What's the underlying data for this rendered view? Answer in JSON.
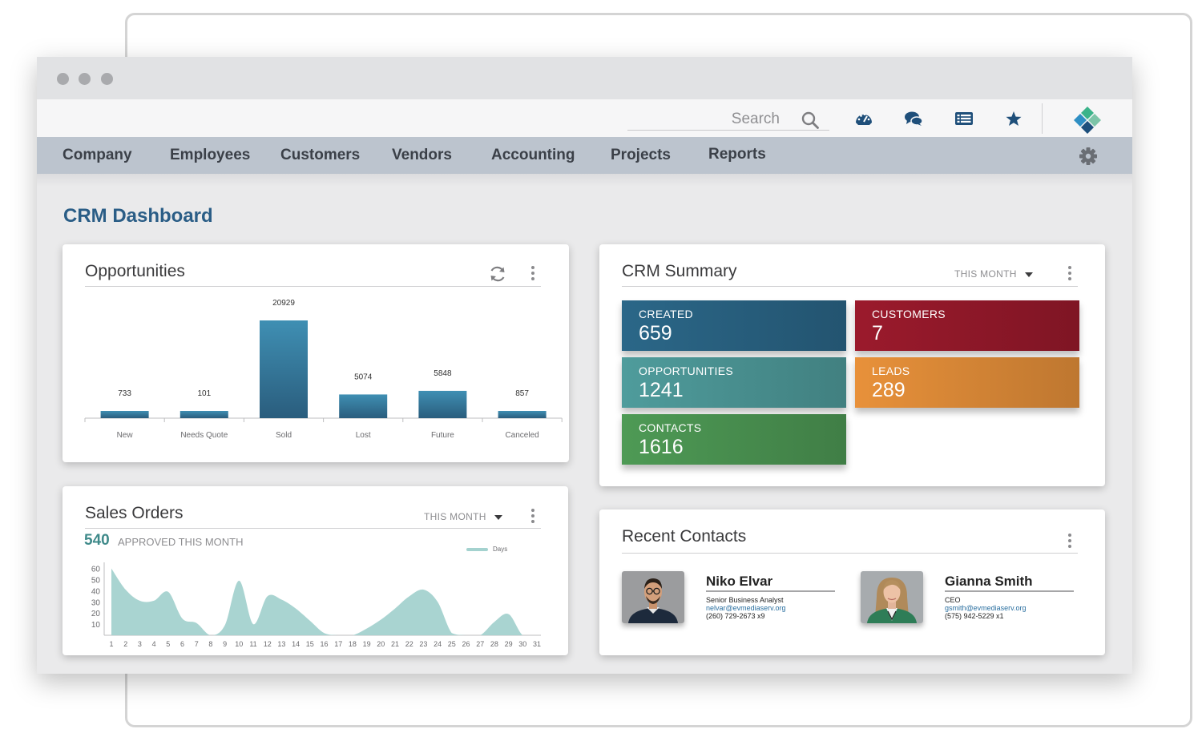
{
  "search": {
    "placeholder": "Search"
  },
  "toolbar_icons": [
    "dashboard-gauge-icon",
    "chat-bubbles-icon",
    "list-icon",
    "star-icon"
  ],
  "nav": {
    "items": [
      "Company",
      "Employees",
      "Customers",
      "Vendors",
      "Accounting",
      "Projects",
      "Reports"
    ]
  },
  "page": {
    "title": "CRM Dashboard"
  },
  "opportunities": {
    "title": "Opportunities"
  },
  "crm_summary": {
    "title": "CRM Summary",
    "period": "THIS MONTH",
    "tiles": [
      {
        "label": "CREATED",
        "value": "659",
        "color": "#2b6788"
      },
      {
        "label": "CUSTOMERS",
        "value": "7",
        "color": "#9b1a2c"
      },
      {
        "label": "OPPORTUNITIES",
        "value": "1241",
        "color": "#4f9c9c"
      },
      {
        "label": "LEADS",
        "value": "289",
        "color": "#e8913a"
      },
      {
        "label": "CONTACTS",
        "value": "1616",
        "color": "#4e9a55"
      }
    ]
  },
  "sales_orders": {
    "title": "Sales Orders",
    "period": "THIS MONTH",
    "approved_count": "540",
    "approved_label": "APPROVED THIS MONTH"
  },
  "recent_contacts": {
    "title": "Recent Contacts",
    "contacts": [
      {
        "name": "Niko Elvar",
        "role": "Senior Business Analyst",
        "email": "nelvar@evmediaserv.org",
        "phone": "(260) 729-2673 x9"
      },
      {
        "name": "Gianna Smith",
        "role": "CEO",
        "email": "gsmith@evmediaserv.org",
        "phone": "(575) 942-5229 x1"
      }
    ]
  },
  "chart_data": [
    {
      "type": "bar",
      "categories": [
        "New",
        "Needs Quote",
        "Sold",
        "Lost",
        "Future",
        "Canceled"
      ],
      "values": [
        733,
        101,
        20929,
        5074,
        5848,
        857
      ],
      "title": "Opportunities",
      "color": "#2f7b9f"
    },
    {
      "type": "area",
      "x": [
        1,
        2,
        3,
        4,
        5,
        6,
        7,
        8,
        9,
        10,
        11,
        12,
        13,
        14,
        15,
        16,
        17,
        18,
        19,
        20,
        21,
        22,
        23,
        24,
        25,
        26,
        27,
        28,
        29,
        30,
        31
      ],
      "series": [
        {
          "name": "Days",
          "values": [
            60,
            41,
            31,
            31,
            39,
            15,
            11,
            0,
            9,
            49,
            10,
            35,
            32,
            24,
            13,
            2,
            0,
            0,
            6,
            14,
            24,
            35,
            41,
            30,
            2,
            0,
            0,
            12,
            19,
            0,
            0
          ]
        }
      ],
      "yticks": [
        10,
        20,
        30,
        40,
        50,
        60
      ],
      "ylim": [
        0,
        64
      ],
      "legend": "top-right",
      "color": "#a4d2cf"
    }
  ]
}
